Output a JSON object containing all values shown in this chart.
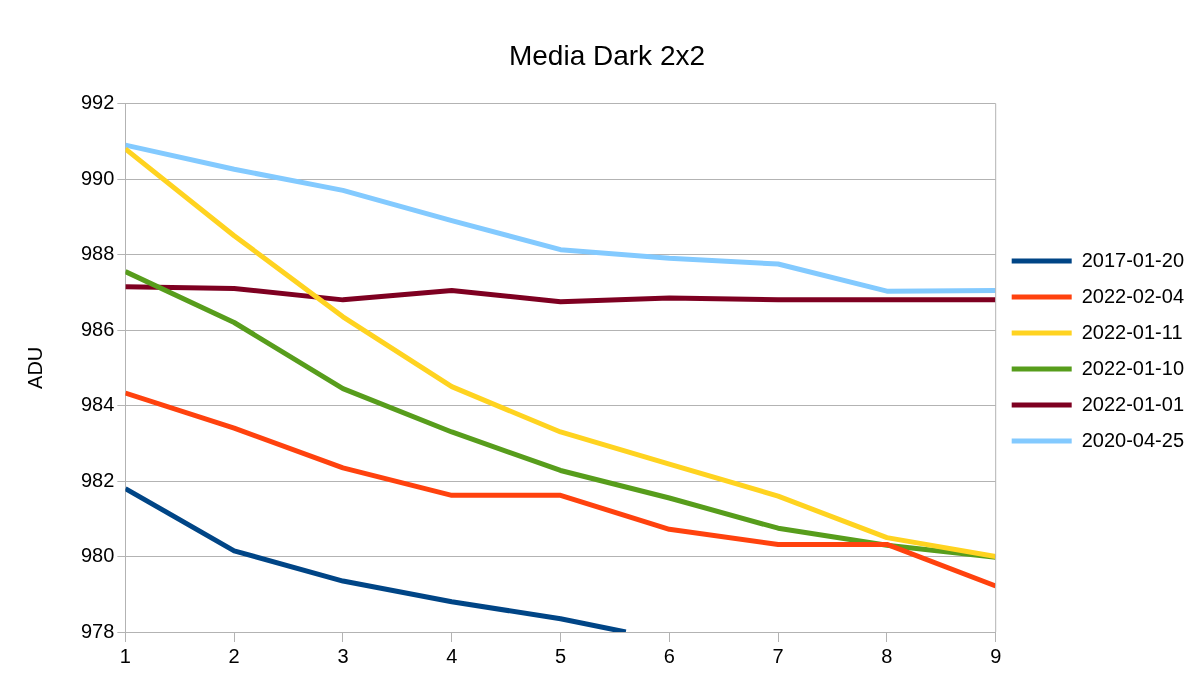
{
  "chart_data": {
    "type": "line",
    "title": "Media Dark 2x2",
    "ylabel": "ADU",
    "x": [
      1,
      2,
      3,
      4,
      5,
      6,
      7,
      8,
      9
    ],
    "series": [
      {
        "name": "2017-01-20",
        "color": "#004586",
        "x": [
          1,
          2,
          3,
          4,
          5,
          5.6
        ],
        "values": [
          981.8,
          980.15,
          979.35,
          978.8,
          978.35,
          978.0
        ]
      },
      {
        "name": "2022-02-04",
        "color": "#ff420e",
        "values": [
          984.33,
          983.4,
          982.35,
          981.62,
          981.62,
          980.72,
          980.32,
          980.32,
          979.22
        ]
      },
      {
        "name": "2022-01-11",
        "color": "#ffd320",
        "values": [
          990.8,
          988.5,
          986.35,
          984.5,
          983.3,
          982.45,
          981.6,
          980.5,
          980.0
        ]
      },
      {
        "name": "2022-01-10",
        "color": "#579d1c",
        "values": [
          987.55,
          986.2,
          984.45,
          983.3,
          982.28,
          981.55,
          980.75,
          980.3,
          979.98
        ]
      },
      {
        "name": "2022-01-01",
        "color": "#7e0021",
        "values": [
          987.15,
          987.1,
          986.8,
          987.05,
          986.75,
          986.85,
          986.8,
          986.8,
          986.8
        ]
      },
      {
        "name": "2020-04-25",
        "color": "#83caff",
        "values": [
          990.9,
          990.26,
          989.7,
          988.9,
          988.13,
          987.9,
          987.75,
          987.03,
          987.05
        ]
      }
    ],
    "xlim": [
      1,
      9
    ],
    "xticks": [
      1,
      2,
      3,
      4,
      5,
      6,
      7,
      8,
      9
    ],
    "ylim": [
      978,
      992
    ],
    "yticks": [
      978,
      980,
      982,
      984,
      986,
      988,
      990,
      992
    ],
    "grid": "y",
    "legend": "right",
    "marker": "none",
    "line_style": "solid"
  }
}
